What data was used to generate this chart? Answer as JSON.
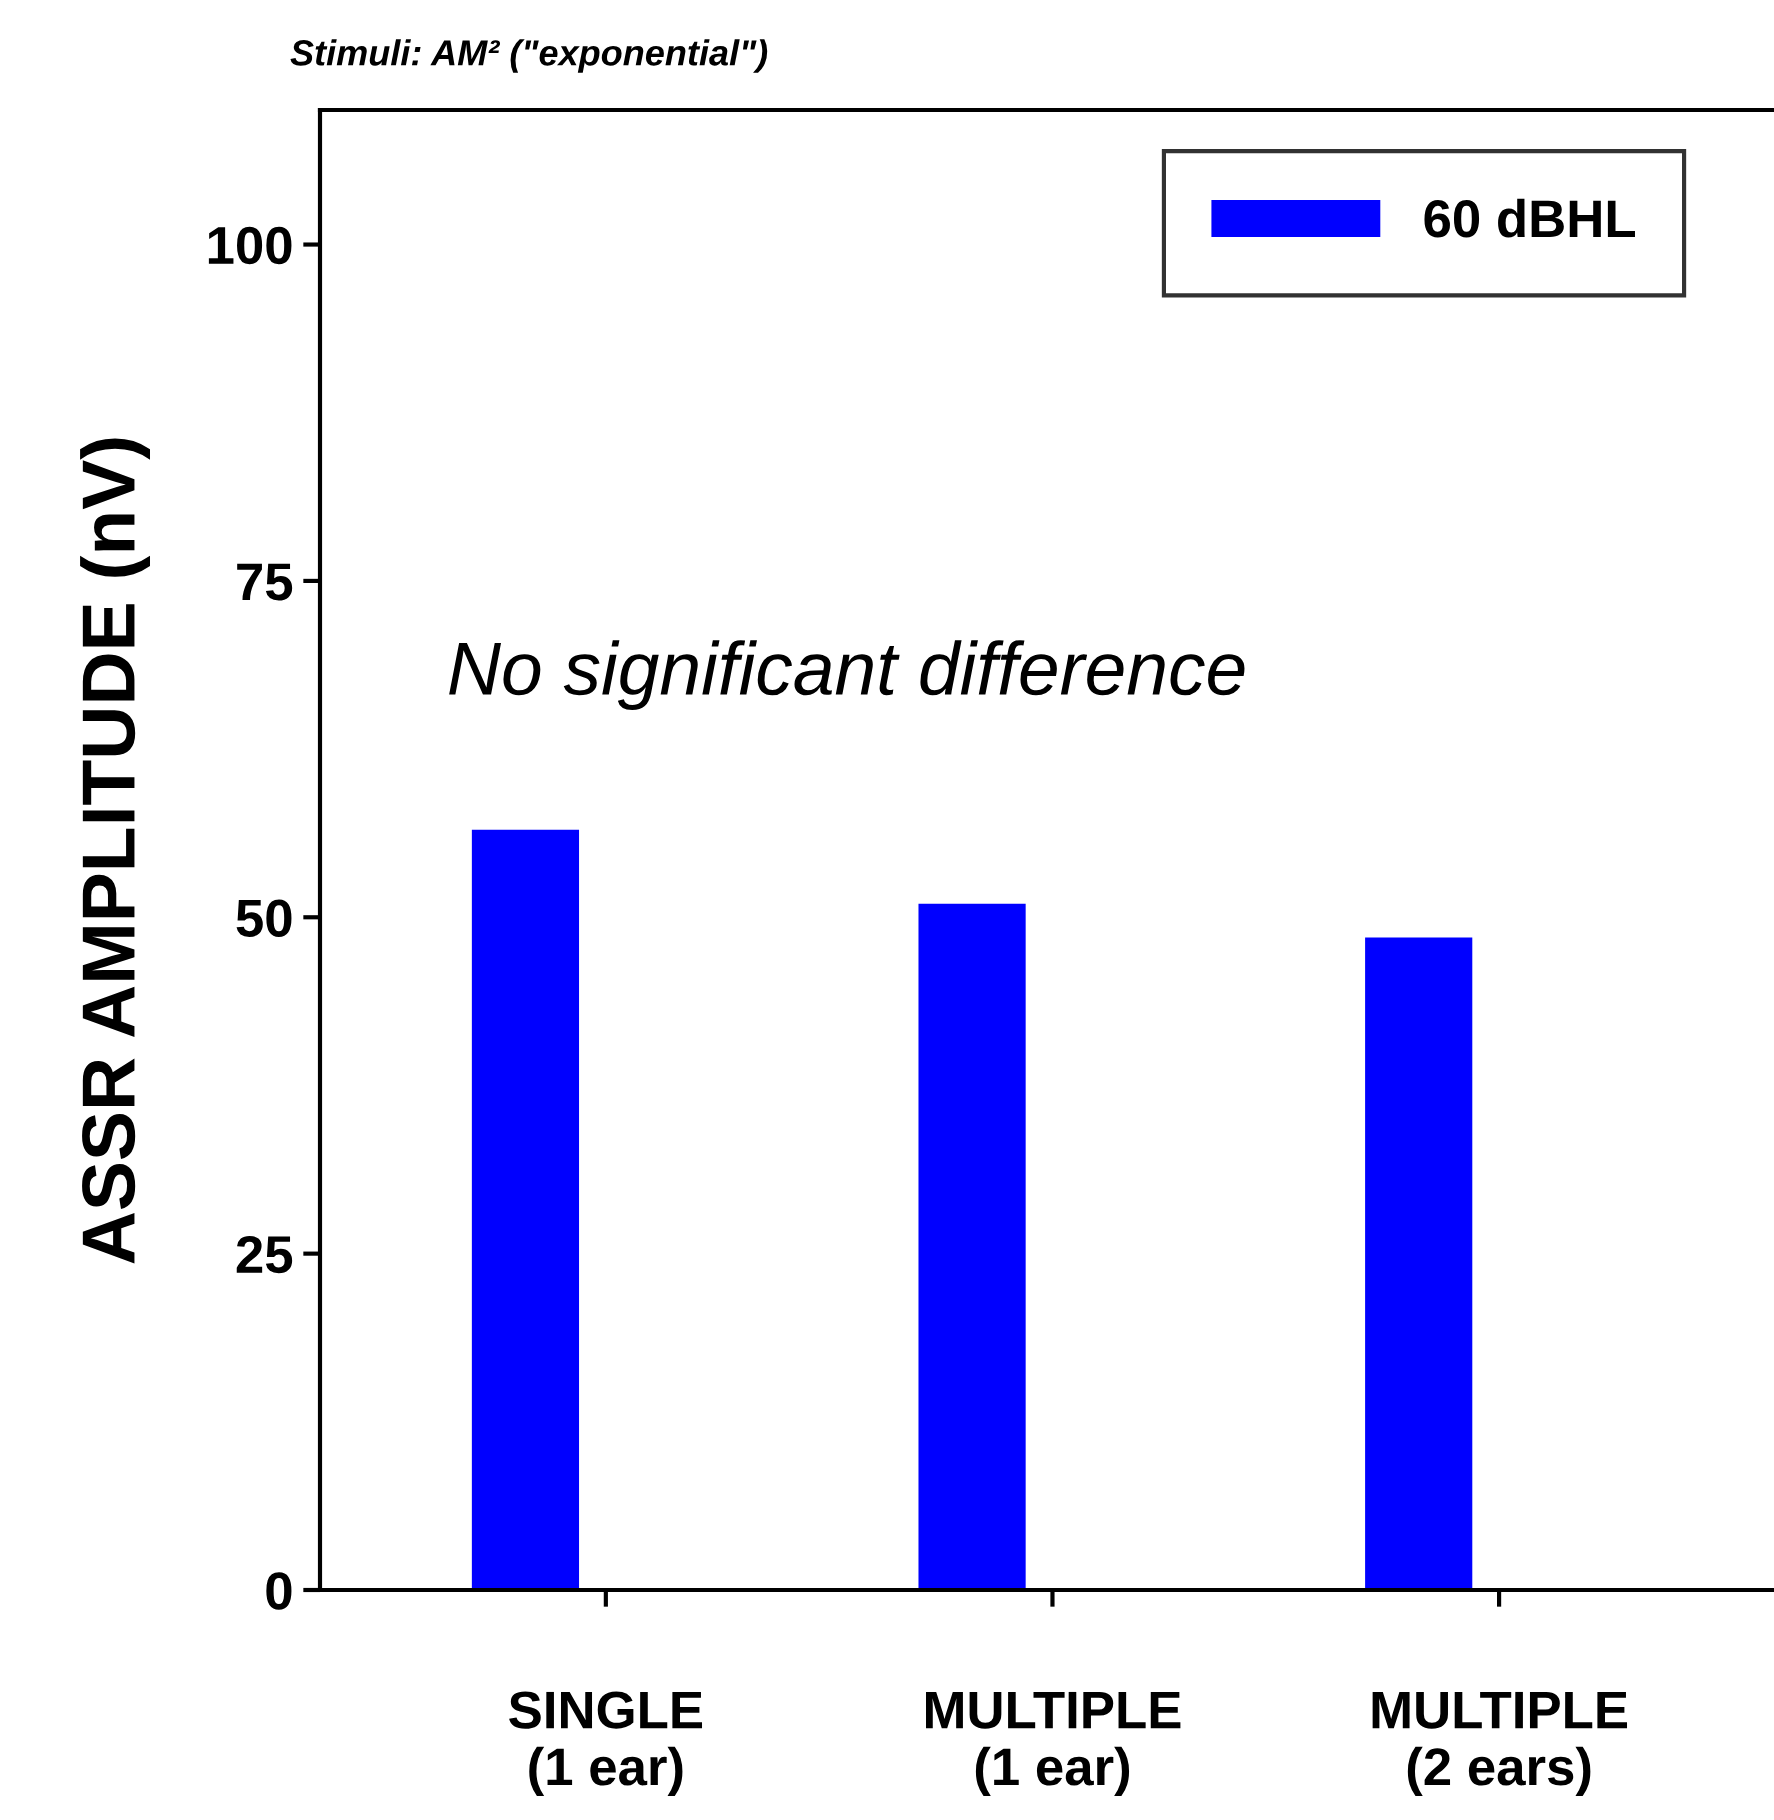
{
  "chart_data": {
    "type": "bar",
    "title": "Stimuli: AM² (\"exponential\")",
    "ylabel": "ASSR AMPLITUDE (nV)",
    "categories": [
      "SINGLE\n(1 ear)",
      "MULTIPLE\n(1 ear)",
      "MULTIPLE\n(2 ears)"
    ],
    "series": [
      {
        "name": "60 dBHL",
        "color": "#0000ff",
        "values": [
          56.5,
          51,
          48.5
        ]
      }
    ],
    "ylim": [
      0,
      110
    ],
    "yticks": [
      0,
      25,
      50,
      75,
      100
    ],
    "grid": false,
    "legend": "top right",
    "annotations": [
      "No significant difference"
    ]
  }
}
